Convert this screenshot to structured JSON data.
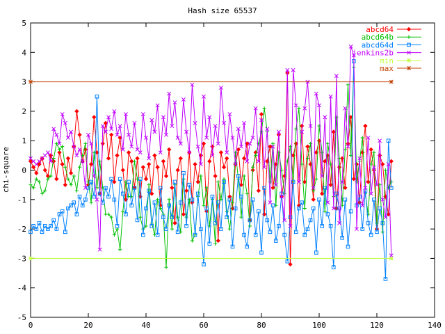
{
  "chart_data": {
    "type": "line",
    "title": "Hash size 65537",
    "xlabel": "",
    "ylabel": "chi-square",
    "xlim": [
      0,
      140
    ],
    "ylim": [
      -5,
      5
    ],
    "xticks": [
      0,
      20,
      40,
      60,
      80,
      100,
      120,
      140
    ],
    "yticks": [
      -5,
      -4,
      -3,
      -2,
      -1,
      0,
      1,
      2,
      3,
      4,
      5
    ],
    "x_start": 0,
    "legend_position": "top-right",
    "series": [
      {
        "name": "abcd64",
        "color": "#ff0000",
        "marker": "diamond",
        "values": [
          0.3,
          0.1,
          -0.1,
          0.2,
          0.4,
          0.0,
          -0.2,
          0.5,
          0.3,
          -0.3,
          0.6,
          0.2,
          -0.5,
          0.4,
          -0.1,
          0.8,
          2.0,
          1.2,
          0.3,
          0.7,
          -0.5,
          0.2,
          1.8,
          0.6,
          -0.8,
          0.9,
          1.6,
          0.4,
          1.2,
          -0.4,
          0.5,
          1.1,
          0.0,
          -1.0,
          0.6,
          0.3,
          -0.6,
          0.4,
          -0.9,
          0.1,
          -0.3,
          0.2,
          -0.8,
          0.5,
          0.1,
          -1.2,
          0.3,
          -0.2,
          0.7,
          -0.6,
          -1.8,
          0.0,
          0.4,
          -1.5,
          -0.7,
          0.6,
          -1.1,
          0.2,
          -0.4,
          0.5,
          0.9,
          -1.4,
          0.3,
          0.8,
          -0.2,
          -2.4,
          0.6,
          0.1,
          0.4,
          -0.9,
          -1.3,
          0.2,
          0.7,
          -0.5,
          0.4,
          0.9,
          -1.7,
          0.0,
          0.6,
          -0.7,
          1.9,
          -1.5,
          0.3,
          0.8,
          -0.6,
          0.2,
          1.2,
          -0.9,
          -0.2,
          3.3,
          -3.2,
          0.5,
          0.9,
          -1.2,
          1.5,
          -0.4,
          0.8,
          0.2,
          -1.0,
          0.6,
          1.0,
          -0.8,
          0.3,
          0.5,
          -0.5,
          1.3,
          -1.3,
          0.1,
          0.4,
          -0.6,
          0.9,
          1.8,
          -0.3,
          0.2,
          -1.1,
          0.6,
          1.5,
          -0.4,
          0.7,
          0.0,
          -2.0,
          0.5,
          0.2,
          -0.9,
          -1.5,
          0.3
        ]
      },
      {
        "name": "abcd64b",
        "color": "#00c000",
        "marker": "plus",
        "values": [
          -0.5,
          -0.6,
          -0.3,
          -0.4,
          -0.8,
          -0.7,
          -0.3,
          -0.2,
          0.4,
          0.9,
          0.7,
          0.8,
          0.1,
          -0.3,
          -0.5,
          -0.2,
          -0.7,
          0.1,
          0.5,
          0.9,
          -0.4,
          -1.1,
          0.6,
          -0.6,
          0.3,
          -0.6,
          -1.5,
          -1.5,
          -1.6,
          -2.2,
          -2.0,
          -2.7,
          -1.4,
          -0.4,
          -0.9,
          -0.9,
          0.3,
          -0.3,
          -1.6,
          -2.0,
          -1.9,
          -0.5,
          -1.8,
          -2.2,
          -1.0,
          -1.3,
          -1.5,
          -3.3,
          -1.0,
          -2.0,
          -0.5,
          -1.6,
          -2.1,
          -0.3,
          -1.6,
          -1.0,
          -2.4,
          -2.2,
          -0.9,
          -0.2,
          -1.2,
          -0.6,
          -1.9,
          -1.0,
          -2.5,
          -0.4,
          -1.0,
          -0.3,
          -1.4,
          -2.0,
          -1.1,
          0.6,
          -0.3,
          -1.6,
          -0.2,
          -0.8,
          -1.9,
          0.1,
          0.5,
          0.9,
          1.3,
          2.1,
          1.3,
          -0.4,
          0.9,
          -1.2,
          0.6,
          0.0,
          -0.8,
          0.3,
          0.8,
          -0.4,
          1.4,
          2.1,
          0.2,
          -1.3,
          0.4,
          0.9,
          -0.7,
          -0.3,
          1.5,
          0.6,
          -1.4,
          0.9,
          0.2,
          -0.9,
          1.8,
          0.4,
          -1.2,
          0.7,
          2.9,
          0.5,
          3.5,
          -0.4,
          0.3,
          1.1,
          -0.8,
          -1.5,
          0.2,
          0.6,
          -1.8,
          -0.5,
          -2.1,
          0.0,
          -0.6,
          -0.4
        ]
      },
      {
        "name": "abcd64d",
        "color": "#0080ff",
        "marker": "square",
        "values": [
          -2.1,
          -1.9,
          -2.0,
          -1.8,
          -2.1,
          -1.9,
          -2.0,
          -1.9,
          -1.7,
          -2.0,
          -1.5,
          -1.4,
          -2.1,
          -1.3,
          -1.2,
          -1.1,
          -1.5,
          -0.9,
          -1.2,
          -1.0,
          -0.6,
          -0.4,
          -0.9,
          2.5,
          -0.8,
          -1.1,
          -0.6,
          -0.9,
          -0.3,
          -1.0,
          -1.9,
          -0.3,
          -0.8,
          -1.5,
          -0.4,
          -1.2,
          -0.6,
          -1.7,
          -0.3,
          -2.2,
          -1.3,
          -0.7,
          -1.9,
          -1.1,
          -2.2,
          -0.6,
          -1.6,
          -2.0,
          -1.2,
          -1.6,
          -0.4,
          -2.1,
          -1.1,
          -0.1,
          -1.9,
          -0.5,
          -1.0,
          -2.2,
          -0.8,
          -2.0,
          -3.2,
          -1.3,
          -2.5,
          -0.9,
          -1.8,
          -1.1,
          -2.0,
          -0.4,
          -1.6,
          -1.0,
          -2.6,
          -1.3,
          -0.2,
          -0.9,
          -2.2,
          -2.6,
          -1.7,
          -1.0,
          -2.2,
          -1.4,
          -2.8,
          -0.6,
          -1.7,
          -2.1,
          -1.2,
          -2.4,
          -1.9,
          -0.8,
          -2.2,
          -3.1,
          -1.6,
          -0.4,
          -2.1,
          -1.3,
          -1.1,
          -2.2,
          -2.0,
          -1.7,
          -1.3,
          -2.8,
          -1.0,
          -1.9,
          -0.6,
          -1.5,
          -1.9,
          -3.3,
          -0.8,
          -1.3,
          -2.3,
          -1.0,
          -2.6,
          -1.4,
          3.7,
          -1.2,
          -0.9,
          -2.0,
          -0.7,
          -1.8,
          -2.2,
          -1.0,
          -2.1,
          -1.3,
          -1.8,
          -3.7,
          1.0,
          -0.6
        ]
      },
      {
        "name": "jenkins2b",
        "color": "#c000ff",
        "marker": "x",
        "values": [
          0.4,
          0.3,
          0.2,
          0.3,
          0.4,
          0.5,
          0.6,
          0.3,
          1.4,
          1.2,
          0.9,
          1.9,
          1.6,
          1.1,
          1.3,
          0.8,
          0.5,
          0.7,
          0.3,
          -0.6,
          1.2,
          0.9,
          -0.2,
          -1.0,
          -2.7,
          1.5,
          1.3,
          1.8,
          1.4,
          2.0,
          1.2,
          1.5,
          0.7,
          1.9,
          1.2,
          0.8,
          1.6,
          0.7,
          0.6,
          1.9,
          1.1,
          0.4,
          1.7,
          1.3,
          2.2,
          0.6,
          1.8,
          1.2,
          2.6,
          1.5,
          2.3,
          1.1,
          0.9,
          2.4,
          1.3,
          0.6,
          2.9,
          1.6,
          0.8,
          0.2,
          2.5,
          1.1,
          1.8,
          0.5,
          1.5,
          0.9,
          2.8,
          1.6,
          0.6,
          1.9,
          1.1,
          0.2,
          1.4,
          0.8,
          1.6,
          0.3,
          0.9,
          1.1,
          2.1,
          0.3,
          1.7,
          0.1,
          1.4,
          -1.1,
          0.8,
          -0.5,
          1.3,
          -0.9,
          -1.7,
          3.4,
          -1.9,
          3.4,
          2.2,
          -0.4,
          1.3,
          2.1,
          3.0,
          1.5,
          -0.6,
          2.6,
          2.2,
          -0.2,
          1.8,
          -1.1,
          2.5,
          -1.3,
          3.2,
          -1.8,
          -0.4,
          2.1,
          0.8,
          4.2,
          3.9,
          -2.0,
          0.4,
          -1.2,
          -0.6,
          1.1,
          -0.8,
          0.1,
          -0.5,
          1.0,
          -1.0,
          -1.6,
          0.2,
          -2.9
        ]
      },
      {
        "name": "min",
        "color": "#c0ff40",
        "marker": "star",
        "x": [
          0,
          125
        ],
        "values": [
          -3,
          -3
        ]
      },
      {
        "name": "max",
        "color": "#c04000",
        "marker": "star",
        "x": [
          0,
          125
        ],
        "values": [
          3,
          3
        ]
      }
    ]
  }
}
